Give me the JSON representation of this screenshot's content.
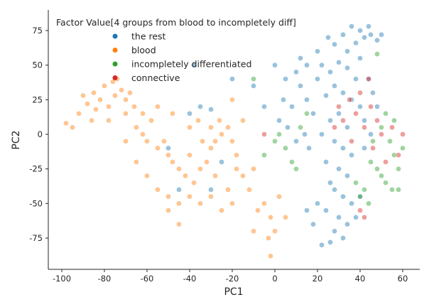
{
  "chart_data": {
    "type": "scatter",
    "xlabel": "PC1",
    "ylabel": "PC2",
    "xlim": [
      -105,
      68
    ],
    "ylim": [
      -97,
      90
    ],
    "xticks": [
      -100,
      -80,
      -60,
      -40,
      -20,
      0,
      20,
      40,
      60
    ],
    "yticks": [
      -75,
      -50,
      -25,
      0,
      25,
      50,
      75
    ],
    "grid": false,
    "legend": {
      "title": "Factor Value[4 groups from blood to incompletely diff]",
      "placement": "top-left"
    },
    "series": [
      {
        "name": "the rest",
        "color": "#1f77b4",
        "points": [
          [
            25,
            70
          ],
          [
            28,
            65
          ],
          [
            32,
            72
          ],
          [
            36,
            78
          ],
          [
            40,
            75
          ],
          [
            42,
            70
          ],
          [
            45,
            72
          ],
          [
            48,
            68
          ],
          [
            38,
            66
          ],
          [
            44,
            78
          ],
          [
            50,
            72
          ],
          [
            34,
            60
          ],
          [
            22,
            50
          ],
          [
            26,
            45
          ],
          [
            30,
            52
          ],
          [
            34,
            48
          ],
          [
            38,
            40
          ],
          [
            28,
            35
          ],
          [
            32,
            30
          ],
          [
            24,
            28
          ],
          [
            36,
            25
          ],
          [
            40,
            20
          ],
          [
            30,
            15
          ],
          [
            26,
            10
          ],
          [
            34,
            5
          ],
          [
            22,
            0
          ],
          [
            28,
            -5
          ],
          [
            32,
            -10
          ],
          [
            36,
            -15
          ],
          [
            24,
            -20
          ],
          [
            30,
            -25
          ],
          [
            34,
            -30
          ],
          [
            26,
            -35
          ],
          [
            28,
            -40
          ],
          [
            32,
            -45
          ],
          [
            36,
            -50
          ],
          [
            24,
            -55
          ],
          [
            30,
            -60
          ],
          [
            34,
            -65
          ],
          [
            28,
            -70
          ],
          [
            32,
            -75
          ],
          [
            26,
            -78
          ],
          [
            38,
            -60
          ],
          [
            40,
            -45
          ],
          [
            20,
            -50
          ],
          [
            18,
            -65
          ],
          [
            15,
            -55
          ],
          [
            22,
            -80
          ],
          [
            10,
            45
          ],
          [
            5,
            40
          ],
          [
            12,
            35
          ],
          [
            8,
            20
          ],
          [
            15,
            25
          ],
          [
            2,
            10
          ],
          [
            6,
            5
          ],
          [
            14,
            0
          ],
          [
            18,
            15
          ],
          [
            10,
            -5
          ],
          [
            16,
            -10
          ],
          [
            0,
            50
          ],
          [
            12,
            55
          ],
          [
            4,
            25
          ],
          [
            20,
            40
          ],
          [
            44,
            40
          ],
          [
            46,
            30
          ],
          [
            48,
            20
          ],
          [
            42,
            10
          ],
          [
            45,
            0
          ],
          [
            42,
            -10
          ],
          [
            -40,
            15
          ],
          [
            -35,
            20
          ],
          [
            -30,
            18
          ],
          [
            -45,
            -40
          ],
          [
            -30,
            -40
          ],
          [
            -25,
            -20
          ],
          [
            -50,
            -10
          ],
          [
            -20,
            40
          ],
          [
            -38,
            50
          ],
          [
            -10,
            35
          ],
          [
            -5,
            20
          ],
          [
            20,
            60
          ],
          [
            15,
            50
          ],
          [
            40,
            55
          ]
        ]
      },
      {
        "name": "blood",
        "color": "#ff7f0e",
        "points": [
          [
            -85,
            30
          ],
          [
            -82,
            25
          ],
          [
            -80,
            35
          ],
          [
            -78,
            20
          ],
          [
            -75,
            28
          ],
          [
            -72,
            32
          ],
          [
            -70,
            25
          ],
          [
            -76,
            38
          ],
          [
            -84,
            18
          ],
          [
            -88,
            22
          ],
          [
            -90,
            28
          ],
          [
            -92,
            15
          ],
          [
            -74,
            40
          ],
          [
            -68,
            30
          ],
          [
            -66,
            20
          ],
          [
            -70,
            15
          ],
          [
            -78,
            10
          ],
          [
            -86,
            10
          ],
          [
            -95,
            5
          ],
          [
            -98,
            8
          ],
          [
            -65,
            5
          ],
          [
            -62,
            0
          ],
          [
            -60,
            -5
          ],
          [
            -58,
            10
          ],
          [
            -55,
            -10
          ],
          [
            -52,
            -5
          ],
          [
            -50,
            -15
          ],
          [
            -48,
            -20
          ],
          [
            -45,
            -25
          ],
          [
            -42,
            -30
          ],
          [
            -40,
            -15
          ],
          [
            -38,
            -35
          ],
          [
            -35,
            -25
          ],
          [
            -32,
            -20
          ],
          [
            -30,
            -10
          ],
          [
            -28,
            -5
          ],
          [
            -25,
            0
          ],
          [
            -22,
            5
          ],
          [
            -20,
            -5
          ],
          [
            -18,
            -15
          ],
          [
            -26,
            10
          ],
          [
            -30,
            5
          ],
          [
            -34,
            -5
          ],
          [
            -36,
            10
          ],
          [
            -40,
            -45
          ],
          [
            -45,
            -50
          ],
          [
            -50,
            -45
          ],
          [
            -35,
            -50
          ],
          [
            -30,
            -45
          ],
          [
            -25,
            -55
          ],
          [
            -20,
            -50
          ],
          [
            -22,
            -40
          ],
          [
            -28,
            -30
          ],
          [
            -15,
            -30
          ],
          [
            -12,
            -40
          ],
          [
            -10,
            -25
          ],
          [
            -18,
            -25
          ],
          [
            -60,
            -30
          ],
          [
            -65,
            -20
          ],
          [
            -55,
            -40
          ],
          [
            -50,
            -55
          ],
          [
            -45,
            -65
          ],
          [
            -70,
            -5
          ],
          [
            -62,
            15
          ],
          [
            -55,
            20
          ],
          [
            -48,
            15
          ],
          [
            -40,
            5
          ],
          [
            -20,
            25
          ],
          [
            -15,
            10
          ],
          [
            -5,
            -50
          ],
          [
            -2,
            -60
          ],
          [
            0,
            -70
          ],
          [
            -3,
            -75
          ],
          [
            -2,
            -88
          ],
          [
            -8,
            -55
          ],
          [
            2,
            -45
          ],
          [
            5,
            -60
          ],
          [
            -10,
            -70
          ]
        ]
      },
      {
        "name": "incompletely differentiated",
        "color": "#2ca02c",
        "points": [
          [
            50,
            -30
          ],
          [
            52,
            -35
          ],
          [
            55,
            -40
          ],
          [
            48,
            -25
          ],
          [
            45,
            -20
          ],
          [
            58,
            -25
          ],
          [
            56,
            -15
          ],
          [
            54,
            -5
          ],
          [
            50,
            5
          ],
          [
            56,
            10
          ],
          [
            52,
            15
          ],
          [
            46,
            -5
          ],
          [
            42,
            -40
          ],
          [
            40,
            -45
          ],
          [
            44,
            -50
          ],
          [
            58,
            -40
          ],
          [
            60,
            -10
          ],
          [
            10,
            -25
          ],
          [
            8,
            -20
          ],
          [
            5,
            -10
          ],
          [
            2,
            0
          ],
          [
            12,
            5
          ],
          [
            15,
            15
          ],
          [
            -10,
            40
          ],
          [
            -5,
            -15
          ],
          [
            0,
            -5
          ],
          [
            48,
            58
          ],
          [
            38,
            -35
          ]
        ]
      },
      {
        "name": "connective",
        "color": "#d62728",
        "points": [
          [
            35,
            25
          ],
          [
            40,
            30
          ],
          [
            45,
            20
          ],
          [
            42,
            5
          ],
          [
            48,
            10
          ],
          [
            50,
            0
          ],
          [
            55,
            5
          ],
          [
            38,
            15
          ],
          [
            32,
            10
          ],
          [
            30,
            20
          ],
          [
            46,
            -10
          ],
          [
            52,
            -20
          ],
          [
            58,
            -15
          ],
          [
            44,
            40
          ],
          [
            36,
            -5
          ],
          [
            28,
            5
          ],
          [
            40,
            -55
          ],
          [
            42,
            -60
          ],
          [
            -5,
            0
          ],
          [
            60,
            0
          ]
        ]
      }
    ]
  }
}
